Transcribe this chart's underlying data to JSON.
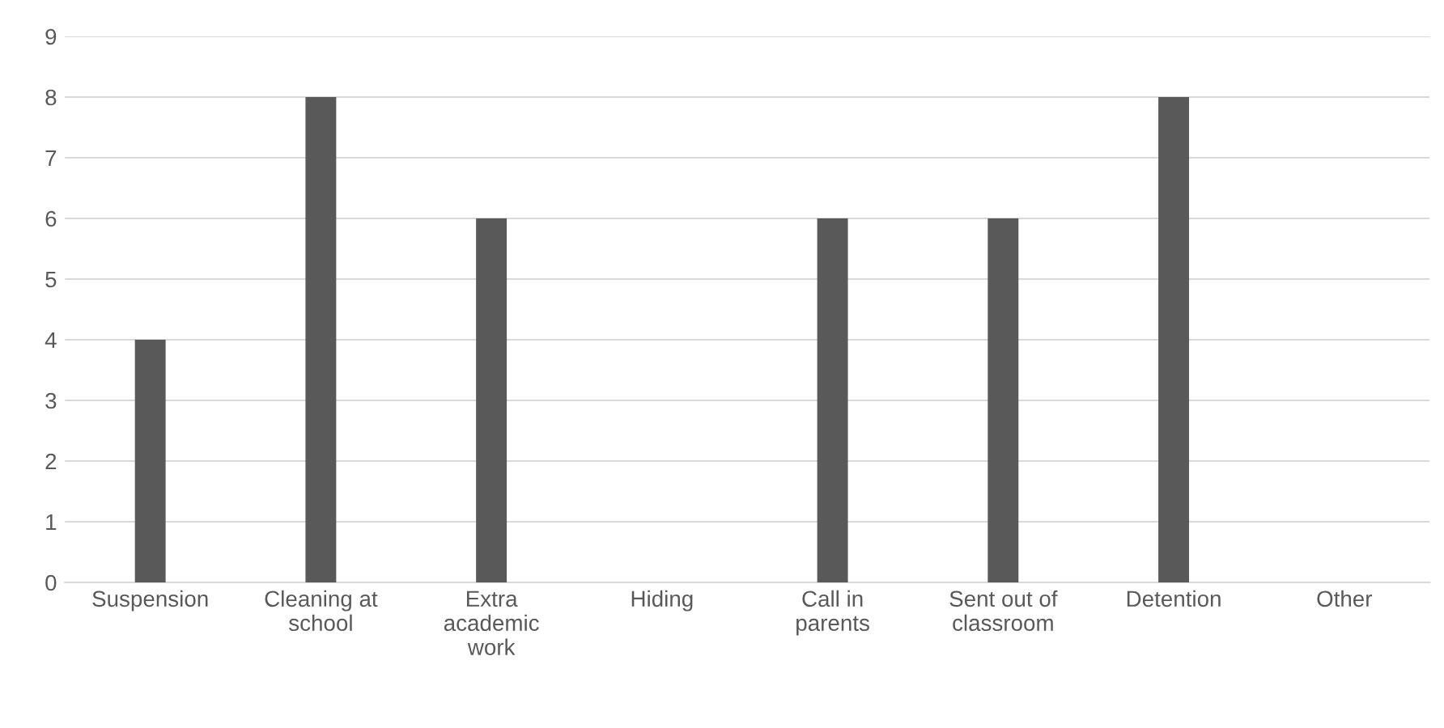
{
  "chart_data": {
    "type": "bar",
    "categories": [
      "Suspension",
      "Cleaning at school",
      "Extra academic work",
      "Hiding",
      "Call in parents",
      "Sent out of classroom",
      "Detention",
      "Other"
    ],
    "values": [
      4,
      8,
      6,
      0,
      6,
      6,
      8,
      0
    ],
    "color": "#595959",
    "ylim": [
      0,
      9
    ],
    "yticks": [
      0,
      1,
      2,
      3,
      4,
      5,
      6,
      7,
      8,
      9
    ],
    "grid": "y",
    "legend": false
  }
}
